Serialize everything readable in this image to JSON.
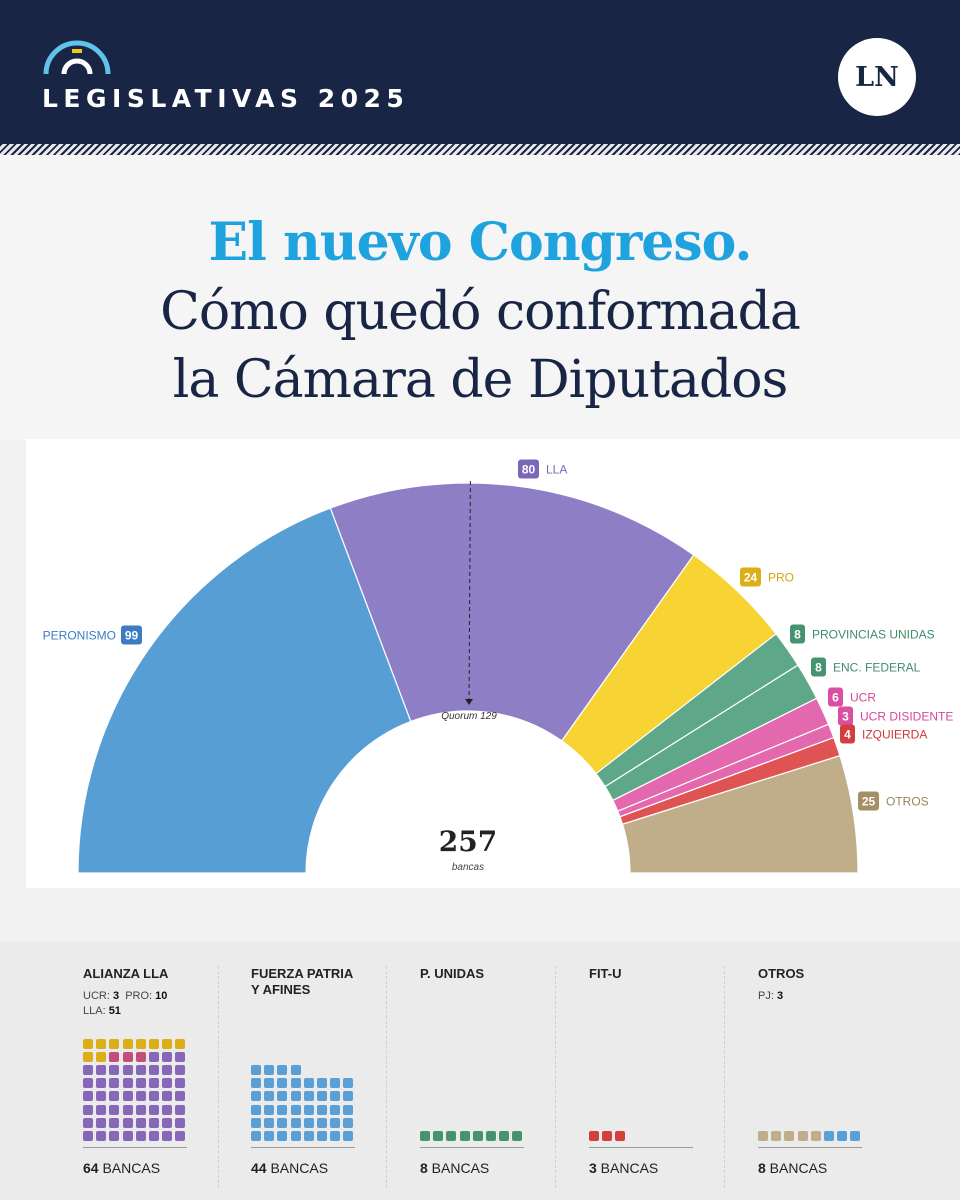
{
  "header": {
    "brand": "LEGISLATIVAS 2025",
    "logo": "LN",
    "bg": "#182545"
  },
  "title": {
    "line1": "El nuevo Congreso.",
    "line2": "Cómo quedó conformada",
    "line3": "la Cámara de Diputados"
  },
  "chart_data": {
    "type": "pie",
    "variant": "half-donut parliament",
    "total": 257,
    "total_label": "bancas",
    "quorum": 129,
    "quorum_label": "Quorum 129",
    "slices": [
      {
        "label": "PERONISMO",
        "value": 99,
        "color": "#579ed4",
        "text_color": "#3b7cc2",
        "badge_color": "#3b7cc2"
      },
      {
        "label": "LLA",
        "value": 80,
        "color": "#8d7ec6",
        "text_color": "#7b6ab8",
        "badge_color": "#7b66b8"
      },
      {
        "label": "PRO",
        "value": 24,
        "color": "#f7d333",
        "text_color": "#d6a20a",
        "badge_color": "#dcae17"
      },
      {
        "label": "PROVINCIAS UNIDAS",
        "value": 8,
        "color": "#5ea788",
        "text_color": "#3f8d6a",
        "badge_color": "#46936f"
      },
      {
        "label": "ENC. FEDERAL",
        "value": 8,
        "color": "#5ea788",
        "text_color": "#3f8d6a",
        "badge_color": "#46936f"
      },
      {
        "label": "UCR",
        "value": 6,
        "color": "#e468ad",
        "text_color": "#d6469a",
        "badge_color": "#d94fa2"
      },
      {
        "label": "UCR DISIDENTE",
        "value": 3,
        "color": "#e468ad",
        "text_color": "#d6469a",
        "badge_color": "#d94fa2"
      },
      {
        "label": "IZQUIERDA",
        "value": 4,
        "color": "#e05353",
        "text_color": "#cc3a3a",
        "badge_color": "#d23f3f"
      },
      {
        "label": "OTROS",
        "value": 25,
        "color": "#bfae89",
        "text_color": "#9a8559",
        "badge_color": "#a48f66"
      }
    ]
  },
  "blocs": [
    {
      "title_lines": [
        "ALIANZA LLA"
      ],
      "sub": [
        [
          [
            "UCR: ",
            "3"
          ],
          [
            "PRO: ",
            "10"
          ]
        ],
        [
          [
            "LLA: ",
            "51"
          ]
        ]
      ],
      "count": "64",
      "unit": " BANCAS",
      "dots": [
        {
          "value": 10,
          "color": "#dcae17"
        },
        {
          "value": 3,
          "color": "#c44d7b"
        },
        {
          "value": 51,
          "color": "#8768b8"
        }
      ]
    },
    {
      "title_lines": [
        "FUERZA PATRIA",
        "Y AFINES"
      ],
      "sub": [],
      "count": "44",
      "unit": " BANCAS",
      "dots": [
        {
          "value": 44,
          "color": "#5a9fd6"
        }
      ]
    },
    {
      "title_lines": [
        "P. UNIDAS"
      ],
      "sub": [],
      "count": "8",
      "unit": " BANCAS",
      "dots": [
        {
          "value": 8,
          "color": "#46936f"
        }
      ]
    },
    {
      "title_lines": [
        "FIT-U"
      ],
      "sub": [],
      "count": "3",
      "unit": " BANCAS",
      "dots": [
        {
          "value": 3,
          "color": "#d23f3f"
        }
      ]
    },
    {
      "title_lines": [
        "OTROS"
      ],
      "sub": [
        [
          [
            "PJ: ",
            "3"
          ]
        ]
      ],
      "count": "8",
      "unit": " BANCAS",
      "dots": [
        {
          "value": 5,
          "color": "#bfae89"
        },
        {
          "value": 3,
          "color": "#5a9fd6"
        }
      ]
    }
  ]
}
